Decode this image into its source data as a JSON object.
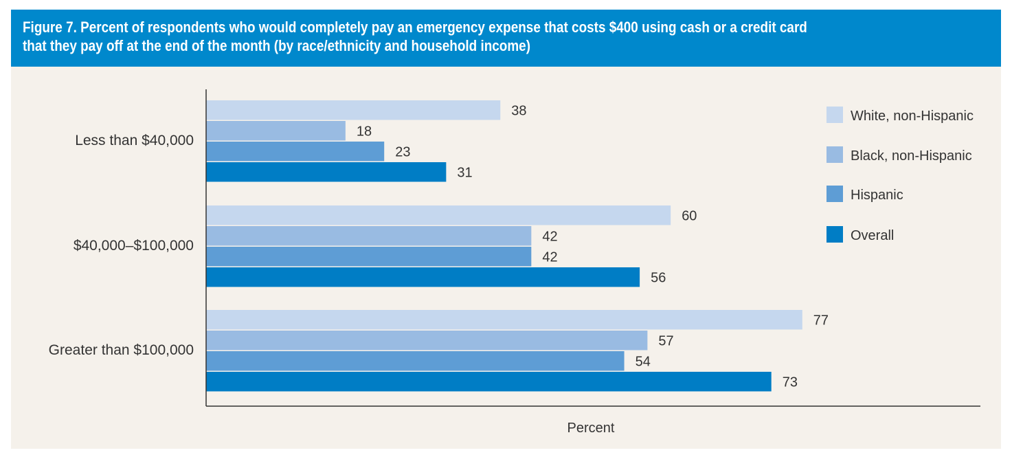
{
  "figure": {
    "title_line1": "Figure 7. Percent of respondents who would completely pay an emergency expense that costs $400 using cash or a credit card",
    "title_line2": "that they pay off at the end of the month (by race/ethnicity and household income)"
  },
  "chart_data": {
    "type": "bar",
    "orientation": "horizontal",
    "title": "Figure 7. Percent of respondents who would completely pay an emergency expense that costs $400 using cash or a credit card that they pay off at the end of the month (by race/ethnicity and household income)",
    "xlabel": "Percent",
    "ylabel": "",
    "xlim": [
      0,
      100
    ],
    "grid": false,
    "legend_position": "top-right",
    "categories": [
      "Less than $40,000",
      "$40,000–$100,000",
      "Greater than $100,000"
    ],
    "series": [
      {
        "name": "White, non-Hispanic",
        "color": "#c5d7ee",
        "values": [
          38,
          60,
          77
        ]
      },
      {
        "name": "Black, non-Hispanic",
        "color": "#99bbe2",
        "values": [
          18,
          42,
          57
        ]
      },
      {
        "name": "Hispanic",
        "color": "#5e9dd5",
        "values": [
          23,
          42,
          54
        ]
      },
      {
        "name": "Overall",
        "color": "#007dc5",
        "values": [
          31,
          56,
          73
        ]
      }
    ]
  }
}
